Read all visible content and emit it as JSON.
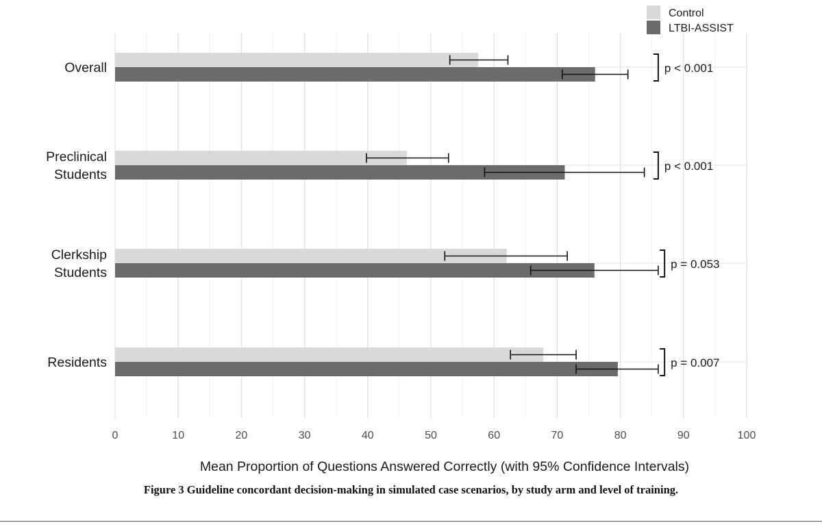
{
  "chart_data": {
    "type": "bar",
    "orientation": "horizontal",
    "categories": [
      [
        "Overall"
      ],
      [
        "Preclinical",
        "Students"
      ],
      [
        "Clerkship",
        "Students"
      ],
      [
        "Residents"
      ]
    ],
    "series": [
      {
        "name": "Control",
        "color": "#d9d9d9",
        "values": [
          57.5,
          46.2,
          62.0,
          67.8
        ],
        "ci_low": [
          53.0,
          39.8,
          52.2,
          62.6
        ],
        "ci_high": [
          62.2,
          52.8,
          71.6,
          73.0
        ]
      },
      {
        "name": "LTBI-ASSIST",
        "color": "#6b6b6b",
        "values": [
          76.0,
          71.2,
          75.9,
          79.6
        ],
        "ci_low": [
          70.8,
          58.5,
          65.8,
          73.0
        ],
        "ci_high": [
          81.2,
          83.8,
          86.0,
          86.0
        ]
      }
    ],
    "p_values": [
      "p < 0.001",
      "p < 0.001",
      "p = 0.053",
      "p = 0.007"
    ],
    "p_bracket_x": [
      86,
      86,
      87,
      87
    ],
    "xlim": [
      0,
      100
    ],
    "xticks": [
      0,
      10,
      20,
      30,
      40,
      50,
      60,
      70,
      80,
      90,
      100
    ],
    "xlabel": "Mean Proportion of  Questions Answered Correctly (with 95% Confidence Intervals)",
    "legend": {
      "position": "top-right",
      "entries": [
        "Control",
        "LTBI-ASSIST"
      ]
    },
    "grid": true
  },
  "caption": "Figure 3   Guideline concordant decision-making in simulated case scenarios, by study arm and level of training."
}
